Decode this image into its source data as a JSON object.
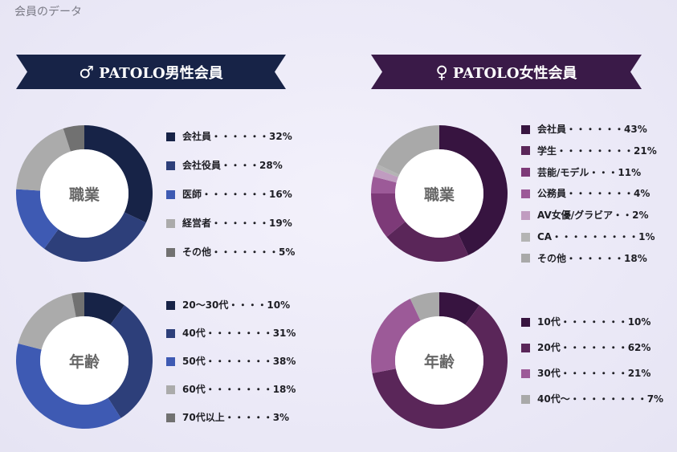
{
  "page_title": "会員のデータ",
  "male": {
    "symbol": "♂",
    "title": "PATOLO男性会員",
    "banner_color": "#172347"
  },
  "female": {
    "symbol": "♀",
    "title": "PATOLO女性会員",
    "banner_color": "#3a1a48"
  },
  "chart_data": [
    {
      "type": "pie",
      "id": "male-occupation",
      "center_label": "職業",
      "categories": [
        "会社員",
        "会社役員",
        "医師",
        "経営者",
        "その他"
      ],
      "values": [
        32,
        28,
        16,
        19,
        5
      ],
      "colors": [
        "#172347",
        "#2d3f7a",
        "#3e5ab3",
        "#ababab",
        "#717171"
      ],
      "legend_text": [
        "会社員・・・・・・32%",
        "会社役員・・・・28%",
        "医師・・・・・・・16%",
        "経営者・・・・・・19%",
        "その他・・・・・・・5%"
      ]
    },
    {
      "type": "pie",
      "id": "male-age",
      "center_label": "年齢",
      "categories": [
        "20〜30代",
        "40代",
        "50代",
        "60代",
        "70代以上"
      ],
      "values": [
        10,
        31,
        38,
        18,
        3
      ],
      "colors": [
        "#172347",
        "#2d3f7a",
        "#3e5ab3",
        "#ababab",
        "#717171"
      ],
      "legend_text": [
        "20〜30代・・・・10%",
        "40代・・・・・・・31%",
        "50代・・・・・・・38%",
        "60代・・・・・・・18%",
        "70代以上・・・・・3%"
      ]
    },
    {
      "type": "pie",
      "id": "female-occupation",
      "center_label": "職業",
      "categories": [
        "会社員",
        "学生",
        "芸能/モデル",
        "公務員",
        "AV女優/グラビア",
        "CA",
        "その他"
      ],
      "values": [
        43,
        21,
        11,
        4,
        2,
        1,
        18
      ],
      "colors": [
        "#371440",
        "#5a2659",
        "#7d3a78",
        "#9c5a98",
        "#c09cc0",
        "#b4b4b4",
        "#a9a9a9"
      ],
      "legend_text": [
        "会社員・・・・・・43%",
        "学生・・・・・・・・21%",
        "芸能/モデル・・・11%",
        "公務員・・・・・・・4%",
        "AV女優/グラビア・・2%",
        "CA・・・・・・・・・1%",
        "その他・・・・・・18%"
      ]
    },
    {
      "type": "pie",
      "id": "female-age",
      "center_label": "年齢",
      "categories": [
        "10代",
        "20代",
        "30代",
        "40代〜"
      ],
      "values": [
        10,
        62,
        21,
        7
      ],
      "colors": [
        "#371440",
        "#5a2659",
        "#9c5a98",
        "#a9a9a9"
      ],
      "legend_text": [
        "10代・・・・・・・10%",
        "20代・・・・・・・62%",
        "30代・・・・・・・21%",
        "40代〜・・・・・・・・7%"
      ]
    }
  ]
}
